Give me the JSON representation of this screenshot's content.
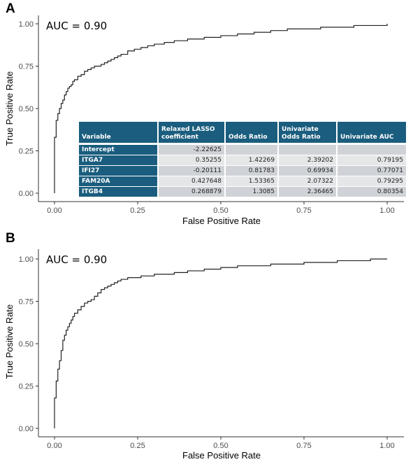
{
  "panels": [
    {
      "letter": "A",
      "auc_label": "AUC = 0.90",
      "xlabel": "False Positive Rate",
      "ylabel": "True Positive Rate",
      "x_ticks": [
        "0.00",
        "0.25",
        "0.50",
        "0.75",
        "1.00"
      ],
      "y_ticks": [
        "0.00",
        "0.25",
        "0.50",
        "0.75",
        "1.00"
      ]
    },
    {
      "letter": "B",
      "auc_label": "AUC = 0.90",
      "xlabel": "False Positive Rate",
      "ylabel": "True Positive Rate",
      "x_ticks": [
        "0.00",
        "0.25",
        "0.50",
        "0.75",
        "1.00"
      ],
      "y_ticks": [
        "0.00",
        "0.25",
        "0.50",
        "0.75",
        "1.00"
      ]
    }
  ],
  "table": {
    "headers": [
      "Variable",
      "Relaxed LASSO coefficient",
      "Odds Ratio",
      "Univariate Odds Ratio",
      "Univariate AUC"
    ],
    "rows": [
      [
        "Intercept",
        "-2.22625",
        "",
        "",
        ""
      ],
      [
        "ITGA7",
        "0.35255",
        "1.42269",
        "2.39202",
        "0.79195"
      ],
      [
        "IFI27",
        "-0.20111",
        "0.81783",
        "0.69934",
        "0.77071"
      ],
      [
        "FAM20A",
        "0.427648",
        "1.53365",
        "2.07322",
        "0.79295"
      ],
      [
        "ITGB4",
        "0.268879",
        "1.3085",
        "2.36465",
        "0.80354"
      ]
    ]
  },
  "chart_data": [
    {
      "type": "line",
      "title": "",
      "xlabel": "False Positive Rate",
      "ylabel": "True Positive Rate",
      "xlim": [
        0,
        1
      ],
      "ylim": [
        0,
        1
      ],
      "grid": false,
      "annotations": [
        "AUC = 0.90"
      ],
      "series": [
        {
          "x": [
            0,
            0,
            0.005,
            0.005,
            0.01,
            0.01,
            0.015,
            0.015,
            0.02,
            0.02,
            0.025,
            0.03,
            0.035,
            0.04,
            0.045,
            0.05,
            0.055,
            0.06,
            0.07,
            0.08,
            0.09,
            0.1,
            0.11,
            0.12,
            0.13,
            0.14,
            0.15,
            0.16,
            0.17,
            0.18,
            0.19,
            0.2,
            0.22,
            0.24,
            0.26,
            0.28,
            0.3,
            0.33,
            0.36,
            0.4,
            0.45,
            0.5,
            0.55,
            0.6,
            0.65,
            0.7,
            0.75,
            0.8,
            0.85,
            0.9,
            0.95,
            1.0
          ],
          "y": [
            0,
            0.33,
            0.33,
            0.43,
            0.43,
            0.47,
            0.47,
            0.5,
            0.5,
            0.53,
            0.55,
            0.58,
            0.6,
            0.62,
            0.63,
            0.64,
            0.66,
            0.67,
            0.69,
            0.7,
            0.72,
            0.73,
            0.74,
            0.75,
            0.75,
            0.76,
            0.77,
            0.78,
            0.79,
            0.8,
            0.81,
            0.82,
            0.84,
            0.85,
            0.86,
            0.87,
            0.88,
            0.89,
            0.9,
            0.91,
            0.92,
            0.93,
            0.94,
            0.95,
            0.96,
            0.97,
            0.97,
            0.98,
            0.98,
            0.99,
            0.99,
            1.0
          ]
        }
      ]
    },
    {
      "type": "line",
      "title": "",
      "xlabel": "False Positive Rate",
      "ylabel": "True Positive Rate",
      "xlim": [
        0,
        1
      ],
      "ylim": [
        0,
        1
      ],
      "grid": false,
      "annotations": [
        "AUC = 0.90"
      ],
      "series": [
        {
          "x": [
            0,
            0,
            0.005,
            0.005,
            0.01,
            0.01,
            0.015,
            0.02,
            0.025,
            0.03,
            0.035,
            0.04,
            0.045,
            0.05,
            0.055,
            0.06,
            0.07,
            0.08,
            0.09,
            0.1,
            0.11,
            0.12,
            0.13,
            0.14,
            0.15,
            0.16,
            0.17,
            0.18,
            0.19,
            0.2,
            0.22,
            0.24,
            0.26,
            0.28,
            0.3,
            0.33,
            0.36,
            0.4,
            0.45,
            0.5,
            0.55,
            0.6,
            0.65,
            0.7,
            0.75,
            0.8,
            0.85,
            0.9,
            0.95,
            1.0
          ],
          "y": [
            0,
            0.18,
            0.18,
            0.28,
            0.28,
            0.35,
            0.4,
            0.46,
            0.52,
            0.55,
            0.58,
            0.6,
            0.62,
            0.64,
            0.66,
            0.68,
            0.7,
            0.72,
            0.74,
            0.75,
            0.76,
            0.78,
            0.8,
            0.82,
            0.83,
            0.84,
            0.85,
            0.86,
            0.87,
            0.88,
            0.89,
            0.89,
            0.9,
            0.9,
            0.91,
            0.91,
            0.92,
            0.93,
            0.94,
            0.95,
            0.96,
            0.96,
            0.97,
            0.97,
            0.98,
            0.98,
            0.99,
            0.99,
            1.0,
            1.0
          ]
        }
      ]
    }
  ]
}
